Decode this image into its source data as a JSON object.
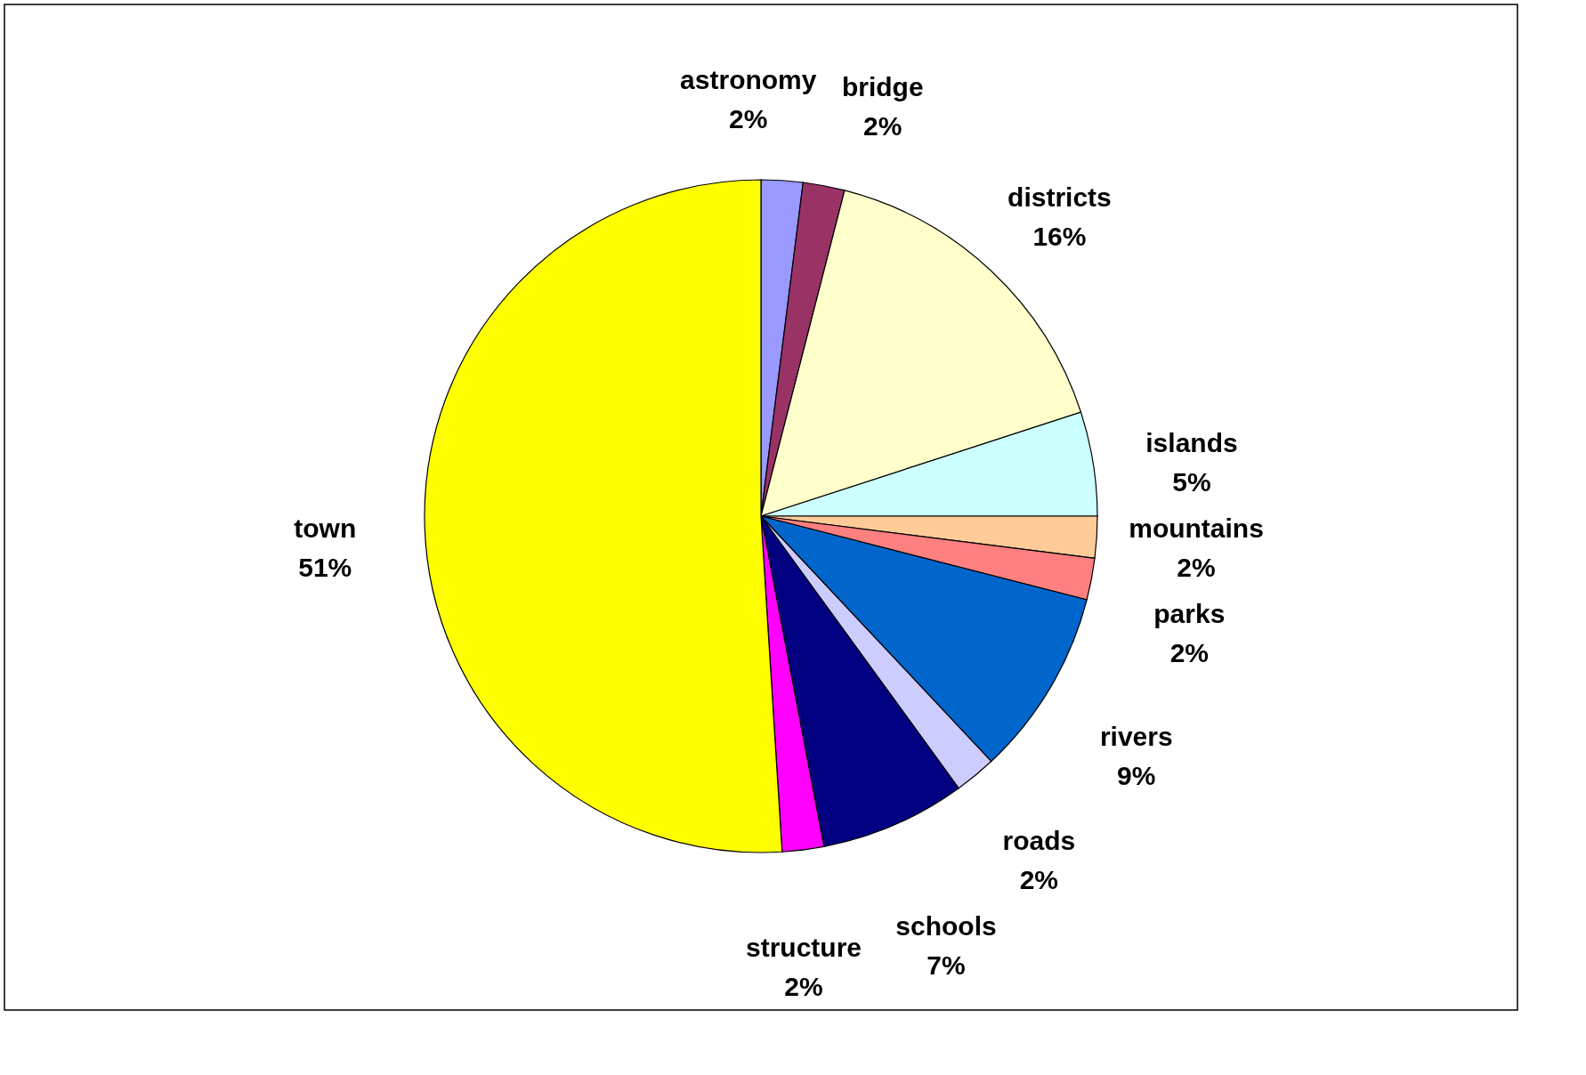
{
  "chart_data": {
    "type": "pie",
    "categories": [
      "astronomy",
      "bridge",
      "districts",
      "islands",
      "mountains",
      "parks",
      "rivers",
      "roads",
      "schools",
      "structure",
      "town"
    ],
    "values": [
      2,
      2,
      16,
      5,
      2,
      2,
      9,
      2,
      7,
      2,
      51
    ],
    "value_labels": [
      "2%",
      "2%",
      "16%",
      "5%",
      "2%",
      "2%",
      "9%",
      "2%",
      "7%",
      "2%",
      "51%"
    ],
    "colors": [
      "#9999ff",
      "#993366",
      "#ffffcc",
      "#ccffff",
      "#ffcc99",
      "#ff8080",
      "#0066cc",
      "#ccccff",
      "#000080",
      "#ff00ff",
      "#ffff00"
    ],
    "legend": false
  }
}
